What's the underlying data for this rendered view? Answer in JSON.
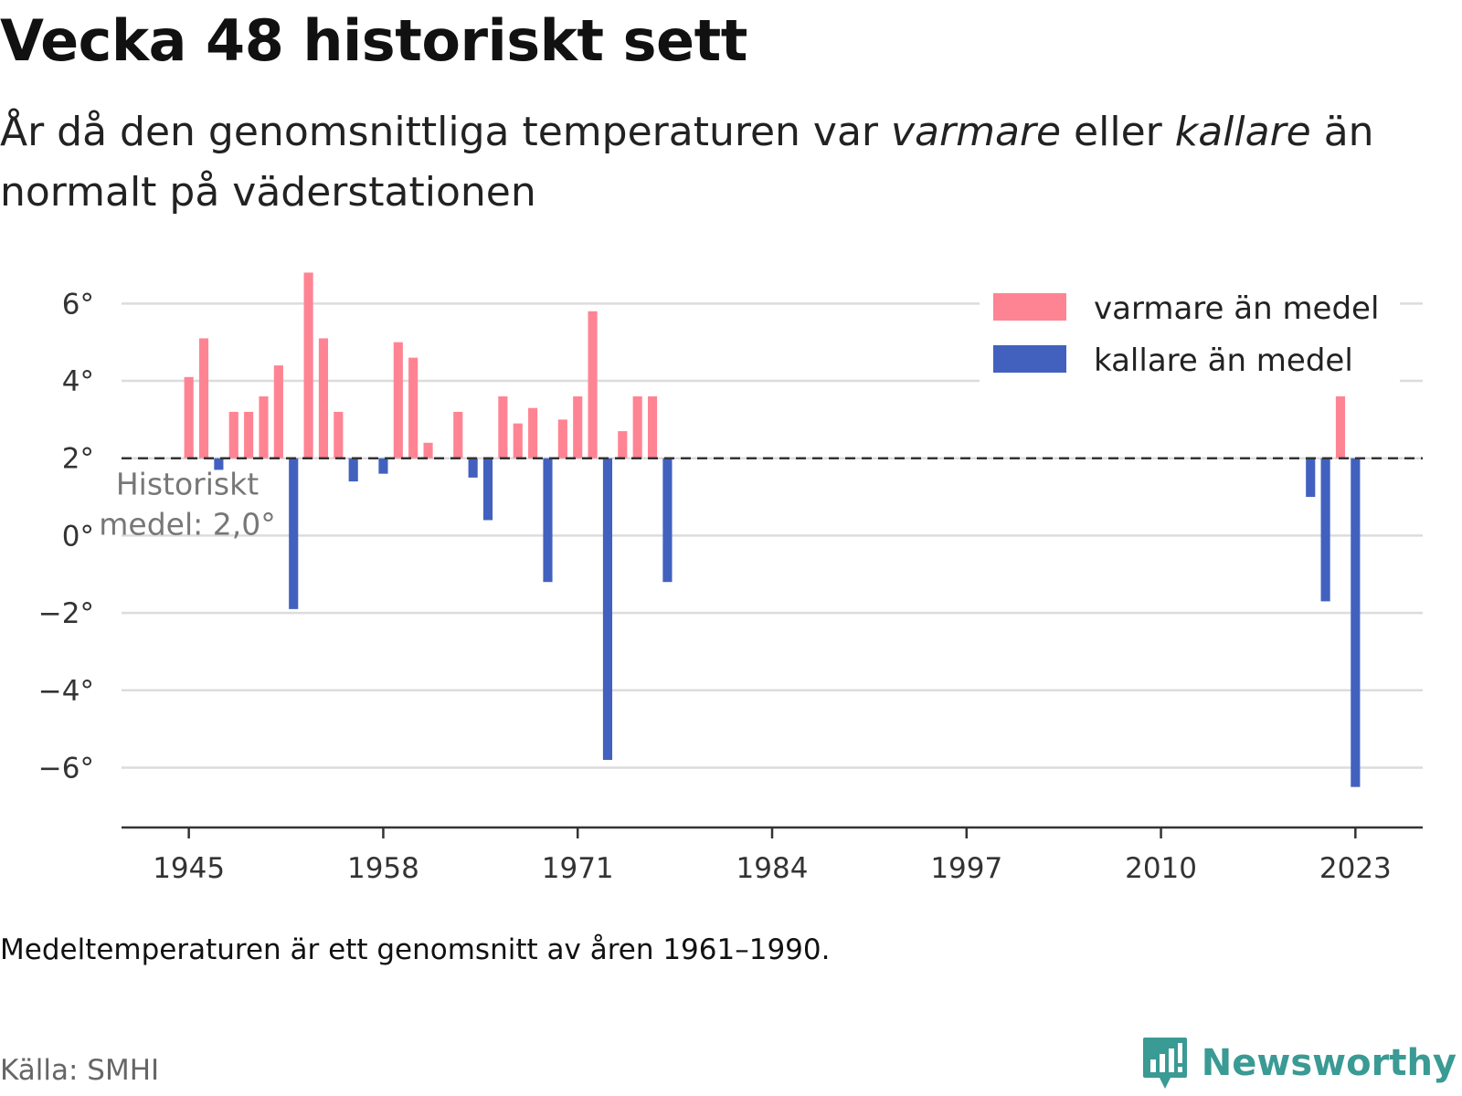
{
  "title": "Vecka 48 historiskt sett",
  "subtitle": {
    "part1": "År då den genomsnittliga temperaturen var ",
    "em1": "varmare",
    "part2": " eller ",
    "em2": "kallare",
    "part3": " än normalt på väderstationen"
  },
  "note": "Medeltemperaturen är ett genomsnitt av åren 1961–1990.",
  "source": "Källa: SMHI",
  "brand": {
    "name": "Newsworthy",
    "icon": "newsworthy-logo-icon",
    "color": "#3a9a94"
  },
  "chart_data": {
    "type": "bar",
    "baseline": 2.0,
    "baseline_label": [
      "Historiskt",
      "medel: 2,0°"
    ],
    "ylim": [
      -7.5,
      7.0
    ],
    "yticks": [
      -6,
      -4,
      -2,
      0,
      2,
      4,
      6
    ],
    "ytick_labels": [
      "−6°",
      "−4°",
      "−2°",
      "0°",
      "2°",
      "4°",
      "6°"
    ],
    "xlim": [
      1940.5,
      2027.5
    ],
    "xticks": [
      1945,
      1958,
      1971,
      1984,
      1997,
      2010,
      2023
    ],
    "colors": {
      "warm": "#ff8493",
      "cold": "#4261bf"
    },
    "legend": {
      "position": "top-right",
      "items": [
        {
          "label": "varmare än medel",
          "kind": "warm"
        },
        {
          "label": "kallare än medel",
          "kind": "cold"
        }
      ]
    },
    "series": [
      {
        "x": 1945,
        "y": 4.1
      },
      {
        "x": 1946,
        "y": 5.1
      },
      {
        "x": 1947,
        "y": 1.7
      },
      {
        "x": 1948,
        "y": 3.2
      },
      {
        "x": 1949,
        "y": 3.2
      },
      {
        "x": 1950,
        "y": 3.6
      },
      {
        "x": 1951,
        "y": 4.4
      },
      {
        "x": 1952,
        "y": -1.9
      },
      {
        "x": 1953,
        "y": 6.8
      },
      {
        "x": 1954,
        "y": 5.1
      },
      {
        "x": 1955,
        "y": 3.2
      },
      {
        "x": 1956,
        "y": 1.4
      },
      {
        "x": 1958,
        "y": 1.6
      },
      {
        "x": 1959,
        "y": 5.0
      },
      {
        "x": 1960,
        "y": 4.6
      },
      {
        "x": 1961,
        "y": 2.4
      },
      {
        "x": 1963,
        "y": 3.2
      },
      {
        "x": 1964,
        "y": 1.5
      },
      {
        "x": 1965,
        "y": 0.4
      },
      {
        "x": 1966,
        "y": 3.6
      },
      {
        "x": 1967,
        "y": 2.9
      },
      {
        "x": 1968,
        "y": 3.3
      },
      {
        "x": 1969,
        "y": -1.2
      },
      {
        "x": 1970,
        "y": 3.0
      },
      {
        "x": 1971,
        "y": 3.6
      },
      {
        "x": 1972,
        "y": 5.8
      },
      {
        "x": 1973,
        "y": -5.8
      },
      {
        "x": 1974,
        "y": 2.7
      },
      {
        "x": 1975,
        "y": 3.6
      },
      {
        "x": 1976,
        "y": 3.6
      },
      {
        "x": 1977,
        "y": -1.2
      },
      {
        "x": 2020,
        "y": 1.0
      },
      {
        "x": 2021,
        "y": -1.7
      },
      {
        "x": 2022,
        "y": 3.6
      },
      {
        "x": 2023,
        "y": -6.5
      }
    ]
  }
}
